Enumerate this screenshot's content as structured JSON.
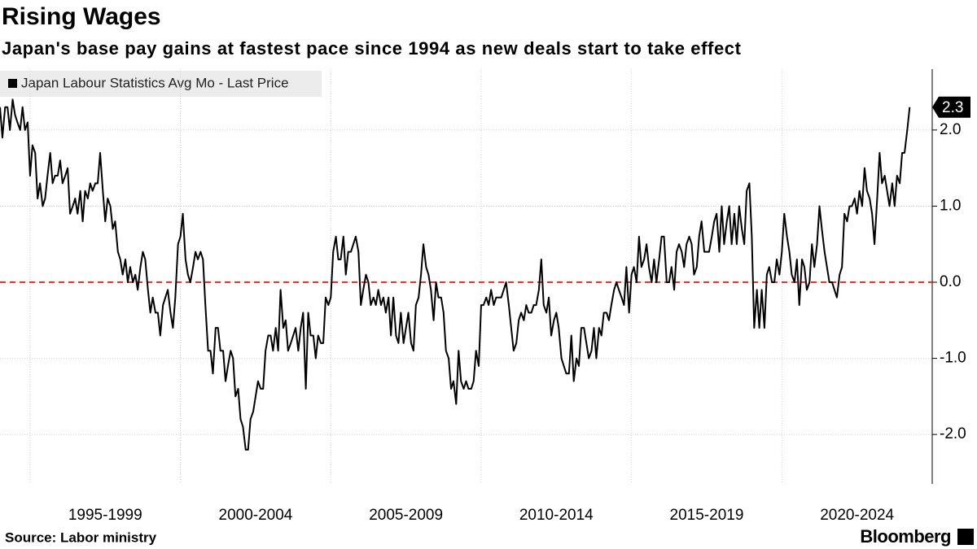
{
  "chart_data": {
    "type": "line",
    "title": "Rising Wages",
    "subtitle": "Japan's base pay gains at fastest pace since 1994 as new deals start to take effect",
    "source": "Source: Labor ministry",
    "brand": "Bloomberg",
    "x": [
      1994,
      1994.08,
      1994.17,
      1994.25,
      1994.33,
      1994.42,
      1994.5,
      1994.58,
      1994.67,
      1994.75,
      1994.83,
      1994.92,
      1995,
      1995.08,
      1995.17,
      1995.25,
      1995.33,
      1995.42,
      1995.5,
      1995.58,
      1995.67,
      1995.75,
      1995.83,
      1995.92,
      1996,
      1996.08,
      1996.17,
      1996.25,
      1996.33,
      1996.42,
      1996.5,
      1996.58,
      1996.67,
      1996.75,
      1996.83,
      1996.92,
      1997,
      1997.08,
      1997.17,
      1997.25,
      1997.33,
      1997.42,
      1997.5,
      1997.58,
      1997.67,
      1997.75,
      1997.83,
      1997.92,
      1998,
      1998.08,
      1998.17,
      1998.25,
      1998.33,
      1998.42,
      1998.5,
      1998.58,
      1998.67,
      1998.75,
      1998.83,
      1998.92,
      1999,
      1999.08,
      1999.17,
      1999.25,
      1999.33,
      1999.42,
      1999.5,
      1999.58,
      1999.67,
      1999.75,
      1999.83,
      1999.92,
      2000,
      2000.08,
      2000.17,
      2000.25,
      2000.33,
      2000.42,
      2000.5,
      2000.58,
      2000.67,
      2000.75,
      2000.83,
      2000.92,
      2001,
      2001.08,
      2001.17,
      2001.25,
      2001.33,
      2001.42,
      2001.5,
      2001.58,
      2001.67,
      2001.75,
      2001.83,
      2001.92,
      2002,
      2002.08,
      2002.17,
      2002.25,
      2002.33,
      2002.42,
      2002.5,
      2002.58,
      2002.67,
      2002.75,
      2002.83,
      2002.92,
      2003,
      2003.08,
      2003.17,
      2003.25,
      2003.33,
      2003.42,
      2003.5,
      2003.58,
      2003.67,
      2003.75,
      2003.83,
      2003.92,
      2004,
      2004.08,
      2004.17,
      2004.25,
      2004.33,
      2004.42,
      2004.5,
      2004.58,
      2004.67,
      2004.75,
      2004.83,
      2004.92,
      2005,
      2005.08,
      2005.17,
      2005.25,
      2005.33,
      2005.42,
      2005.5,
      2005.58,
      2005.67,
      2005.75,
      2005.83,
      2005.92,
      2006,
      2006.08,
      2006.17,
      2006.25,
      2006.33,
      2006.42,
      2006.5,
      2006.58,
      2006.67,
      2006.75,
      2006.83,
      2006.92,
      2007,
      2007.08,
      2007.17,
      2007.25,
      2007.33,
      2007.42,
      2007.5,
      2007.58,
      2007.67,
      2007.75,
      2007.83,
      2007.92,
      2008,
      2008.08,
      2008.17,
      2008.25,
      2008.33,
      2008.42,
      2008.5,
      2008.58,
      2008.67,
      2008.75,
      2008.83,
      2008.92,
      2009,
      2009.08,
      2009.17,
      2009.25,
      2009.33,
      2009.42,
      2009.5,
      2009.58,
      2009.67,
      2009.75,
      2009.83,
      2009.92,
      2010,
      2010.08,
      2010.17,
      2010.25,
      2010.33,
      2010.42,
      2010.5,
      2010.58,
      2010.67,
      2010.75,
      2010.83,
      2010.92,
      2011,
      2011.08,
      2011.17,
      2011.25,
      2011.33,
      2011.42,
      2011.5,
      2011.58,
      2011.67,
      2011.75,
      2011.83,
      2011.92,
      2012,
      2012.08,
      2012.17,
      2012.25,
      2012.33,
      2012.42,
      2012.5,
      2012.58,
      2012.67,
      2012.75,
      2012.83,
      2012.92,
      2013,
      2013.08,
      2013.17,
      2013.25,
      2013.33,
      2013.42,
      2013.5,
      2013.58,
      2013.67,
      2013.75,
      2013.83,
      2013.92,
      2014,
      2014.08,
      2014.17,
      2014.25,
      2014.33,
      2014.42,
      2014.5,
      2014.58,
      2014.67,
      2014.75,
      2014.83,
      2014.92,
      2015,
      2015.08,
      2015.17,
      2015.25,
      2015.33,
      2015.42,
      2015.5,
      2015.58,
      2015.67,
      2015.75,
      2015.83,
      2015.92,
      2016,
      2016.08,
      2016.17,
      2016.25,
      2016.33,
      2016.42,
      2016.5,
      2016.58,
      2016.67,
      2016.75,
      2016.83,
      2016.92,
      2017,
      2017.08,
      2017.17,
      2017.25,
      2017.33,
      2017.42,
      2017.5,
      2017.58,
      2017.67,
      2017.75,
      2017.83,
      2017.92,
      2018,
      2018.08,
      2018.17,
      2018.25,
      2018.33,
      2018.42,
      2018.5,
      2018.58,
      2018.67,
      2018.75,
      2018.83,
      2018.92,
      2019,
      2019.08,
      2019.17,
      2019.25,
      2019.33,
      2019.42,
      2019.5,
      2019.58,
      2019.67,
      2019.75,
      2019.83,
      2019.92,
      2020,
      2020.08,
      2020.17,
      2020.25,
      2020.33,
      2020.42,
      2020.5,
      2020.58,
      2020.67,
      2020.75,
      2020.83,
      2020.92,
      2021,
      2021.08,
      2021.17,
      2021.25,
      2021.33,
      2021.42,
      2021.5,
      2021.58,
      2021.67,
      2021.75,
      2021.83,
      2021.92,
      2022,
      2022.08,
      2022.17,
      2022.25,
      2022.33,
      2022.42,
      2022.5,
      2022.58,
      2022.67,
      2022.75,
      2022.83,
      2022.92,
      2023,
      2023.08,
      2023.17,
      2023.25,
      2023.33,
      2023.42,
      2023.5,
      2023.58,
      2023.67,
      2023.75,
      2023.83,
      2023.92,
      2024,
      2024.08,
      2024.17,
      2024.25
    ],
    "series": [
      {
        "name": "Japan Labour Statistics Avg Mo - Last Price",
        "color": "#000000",
        "values": [
          2.3,
          1.9,
          2.3,
          2.3,
          2.0,
          2.4,
          2.2,
          2.1,
          2.0,
          2.3,
          2.0,
          2.1,
          1.4,
          1.8,
          1.7,
          1.1,
          1.3,
          1.0,
          1.1,
          1.4,
          1.7,
          1.3,
          1.4,
          1.4,
          1.6,
          1.3,
          1.4,
          1.5,
          0.9,
          1.0,
          1.1,
          0.9,
          1.2,
          0.8,
          1.2,
          1.1,
          1.3,
          1.2,
          1.3,
          1.3,
          1.7,
          1.2,
          0.8,
          1.1,
          1.0,
          0.7,
          0.8,
          0.4,
          0.3,
          0.1,
          0.3,
          0.0,
          0.2,
          0.0,
          0.1,
          -0.1,
          0.2,
          0.4,
          0.3,
          -0.1,
          -0.4,
          -0.2,
          -0.4,
          -0.4,
          -0.7,
          -0.3,
          -0.2,
          -0.1,
          -0.4,
          -0.6,
          -0.2,
          0.5,
          0.6,
          0.9,
          0.3,
          0.1,
          0.0,
          0.2,
          0.4,
          0.3,
          0.4,
          0.3,
          -0.3,
          -0.9,
          -0.9,
          -1.2,
          -0.6,
          -0.6,
          -0.9,
          -0.9,
          -1.3,
          -1.1,
          -0.9,
          -1.0,
          -1.5,
          -1.4,
          -1.8,
          -1.9,
          -2.2,
          -2.2,
          -1.8,
          -1.7,
          -1.5,
          -1.3,
          -1.4,
          -1.4,
          -0.9,
          -0.7,
          -0.7,
          -0.9,
          -0.6,
          -0.9,
          -0.1,
          -0.6,
          -0.5,
          -0.9,
          -0.8,
          -0.7,
          -0.6,
          -0.9,
          -0.6,
          -0.4,
          -1.4,
          -0.4,
          -0.7,
          -0.7,
          -1.0,
          -0.7,
          -0.8,
          -0.8,
          -0.2,
          -0.3,
          -0.2,
          0.4,
          0.6,
          0.3,
          0.3,
          0.6,
          0.1,
          0.4,
          0.4,
          0.5,
          0.6,
          0.4,
          -0.3,
          -0.1,
          0.1,
          0.0,
          -0.3,
          -0.2,
          -0.3,
          -0.1,
          -0.3,
          -0.2,
          -0.4,
          -0.2,
          -0.7,
          -0.2,
          -0.7,
          -0.8,
          -0.4,
          -0.8,
          -0.6,
          -0.4,
          -0.8,
          -0.9,
          -0.3,
          -0.2,
          0.1,
          0.5,
          0.2,
          0.1,
          -0.1,
          -0.5,
          0.0,
          -0.2,
          -0.2,
          -0.4,
          -0.9,
          -1.0,
          -1.4,
          -1.3,
          -1.6,
          -0.9,
          -1.3,
          -1.4,
          -1.3,
          -1.4,
          -1.4,
          -1.3,
          -0.9,
          -1.1,
          -0.3,
          -0.3,
          -0.2,
          -0.3,
          -0.1,
          -0.3,
          -0.2,
          -0.2,
          -0.2,
          -0.1,
          0.0,
          -0.3,
          -0.6,
          -0.9,
          -0.8,
          -0.5,
          -0.4,
          -0.5,
          -0.3,
          -0.4,
          -0.4,
          -0.3,
          -0.3,
          -0.1,
          0.3,
          -0.3,
          -0.4,
          -0.2,
          -0.7,
          -0.5,
          -0.4,
          -0.6,
          -1.0,
          -1.1,
          -1.2,
          -1.2,
          -0.7,
          -1.3,
          -1.0,
          -1.1,
          -0.6,
          -0.6,
          -0.8,
          -1.0,
          -0.9,
          -0.6,
          -1.0,
          -0.6,
          -0.7,
          -0.4,
          -0.4,
          -0.5,
          -0.3,
          -0.1,
          0.0,
          -0.1,
          -0.2,
          -0.3,
          0.2,
          -0.4,
          0.1,
          0.2,
          0.0,
          0.6,
          0.2,
          0.3,
          0.5,
          0.2,
          0.0,
          0.3,
          0.0,
          0.3,
          0.6,
          0.6,
          0.0,
          0.0,
          0.2,
          -0.1,
          0.4,
          0.5,
          0.4,
          0.2,
          0.5,
          0.6,
          0.5,
          0.1,
          0.2,
          0.6,
          0.8,
          0.4,
          0.4,
          0.4,
          0.6,
          0.8,
          0.9,
          0.4,
          1.0,
          0.5,
          0.8,
          1.0,
          0.5,
          0.9,
          0.5,
          1.0,
          0.7,
          0.5,
          1.2,
          1.3,
          0.6,
          -0.6,
          -0.1,
          -0.6,
          -0.1,
          -0.6,
          0.1,
          0.2,
          0.0,
          0.0,
          0.3,
          0.1,
          0.4,
          0.9,
          0.6,
          0.4,
          0.1,
          0.0,
          0.3,
          -0.3,
          0.3,
          0.2,
          -0.1,
          0.0,
          0.5,
          0.2,
          0.5,
          1.0,
          0.7,
          0.4,
          0.2,
          0.0,
          0.0,
          -0.1,
          -0.2,
          0.1,
          0.2,
          0.9,
          0.8,
          1.0,
          1.0,
          1.1,
          0.9,
          1.2,
          1.0,
          1.5,
          1.2,
          1.1,
          0.9,
          0.5,
          1.1,
          1.7,
          1.3,
          1.4,
          1.2,
          1.0,
          1.3,
          1.0,
          1.4,
          1.3,
          1.7,
          1.7,
          2.0,
          2.3
        ]
      }
    ],
    "xlim": [
      1994,
      2025
    ],
    "ylim": [
      -2.65,
      2.8
    ],
    "xticks": [
      {
        "value": 1997.5,
        "label": "1995-1999"
      },
      {
        "value": 2002.5,
        "label": "2000-2004"
      },
      {
        "value": 2007.5,
        "label": "2005-2009"
      },
      {
        "value": 2012.5,
        "label": "2010-2014"
      },
      {
        "value": 2017.5,
        "label": "2015-2019"
      },
      {
        "value": 2022.5,
        "label": "2020-2024"
      }
    ],
    "xgrid": [
      1995,
      2000,
      2005,
      2010,
      2015,
      2020
    ],
    "yticks": [
      {
        "value": -2,
        "label": "-2.0"
      },
      {
        "value": -1,
        "label": "-1.0"
      },
      {
        "value": 0,
        "label": "0.0"
      },
      {
        "value": 1,
        "label": "1.0"
      },
      {
        "value": 2,
        "label": "2.0"
      }
    ],
    "reference_line": {
      "value": 0,
      "color": "#e0392b"
    },
    "grid": true
  }
}
